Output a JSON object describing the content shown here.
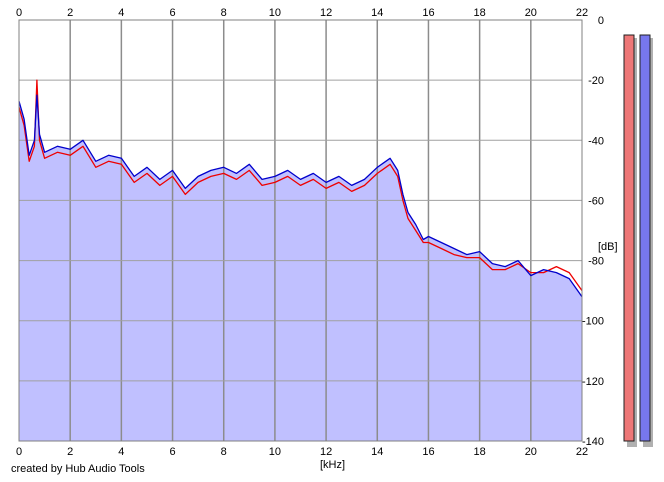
{
  "window": {
    "credit": "created by Hub Audio Tools"
  },
  "chart_data": {
    "type": "area",
    "title": "",
    "xlabel": "[kHz]",
    "ylabel": "[dB]",
    "xlim": [
      0,
      22
    ],
    "ylim": [
      -140,
      0
    ],
    "xticks": [
      0,
      2,
      4,
      6,
      8,
      10,
      12,
      14,
      16,
      18,
      20,
      22
    ],
    "yticks": [
      0,
      -20,
      -40,
      -60,
      -80,
      -100,
      -120,
      -140
    ],
    "ytick_labels": [
      "0",
      "-20",
      "-40",
      "-60",
      "-80",
      "-100",
      "-120",
      "-140"
    ],
    "grid": true,
    "fill_color": "#c0c0ff",
    "series": [
      {
        "color": "#0000cc",
        "x": [
          0,
          0.2,
          0.4,
          0.6,
          0.7,
          0.8,
          1,
          1.5,
          2,
          2.5,
          3,
          3.5,
          4,
          4.5,
          5,
          5.5,
          6,
          6.5,
          7,
          7.5,
          8,
          8.5,
          9,
          9.5,
          10,
          10.5,
          11,
          11.5,
          12,
          12.5,
          13,
          13.5,
          14,
          14.5,
          14.8,
          15,
          15.2,
          15.5,
          15.8,
          16,
          16.5,
          17,
          17.5,
          18,
          18.5,
          19,
          19.5,
          20,
          20.5,
          21,
          21.5,
          22
        ],
        "y": [
          -27,
          -33,
          -45,
          -40,
          -25,
          -38,
          -44,
          -42,
          -43,
          -40,
          -47,
          -45,
          -46,
          -52,
          -49,
          -53,
          -50,
          -56,
          -52,
          -50,
          -49,
          -51,
          -48,
          -53,
          -52,
          -50,
          -53,
          -51,
          -54,
          -52,
          -55,
          -53,
          -49,
          -46,
          -50,
          -58,
          -64,
          -68,
          -73,
          -72,
          -74,
          -76,
          -78,
          -77,
          -81,
          -82,
          -80,
          -85,
          -83,
          -84,
          -86,
          -92
        ]
      },
      {
        "color": "#ee0000",
        "x": [
          0,
          0.2,
          0.4,
          0.6,
          0.7,
          0.8,
          1,
          1.5,
          2,
          2.5,
          3,
          3.5,
          4,
          4.5,
          5,
          5.5,
          6,
          6.5,
          7,
          7.5,
          8,
          8.5,
          9,
          9.5,
          10,
          10.5,
          11,
          11.5,
          12,
          12.5,
          13,
          13.5,
          14,
          14.5,
          14.8,
          15,
          15.2,
          15.5,
          15.8,
          16,
          16.5,
          17,
          17.5,
          18,
          18.5,
          19,
          19.5,
          20,
          20.5,
          21,
          21.5,
          22
        ],
        "y": [
          -29,
          -35,
          -47,
          -42,
          -20,
          -40,
          -46,
          -44,
          -45,
          -42,
          -49,
          -47,
          -48,
          -54,
          -51,
          -55,
          -52,
          -58,
          -54,
          -52,
          -51,
          -53,
          -50,
          -55,
          -54,
          -52,
          -55,
          -53,
          -56,
          -54,
          -57,
          -55,
          -51,
          -48,
          -52,
          -60,
          -66,
          -70,
          -74,
          -74,
          -76,
          -78,
          -79,
          -79,
          -83,
          -83,
          -81,
          -84,
          -84,
          -82,
          -84,
          -90
        ]
      }
    ],
    "level_meters": [
      {
        "color": "#ee7777",
        "value_db": -1
      },
      {
        "color": "#7777ee",
        "value_db": -1
      }
    ]
  }
}
